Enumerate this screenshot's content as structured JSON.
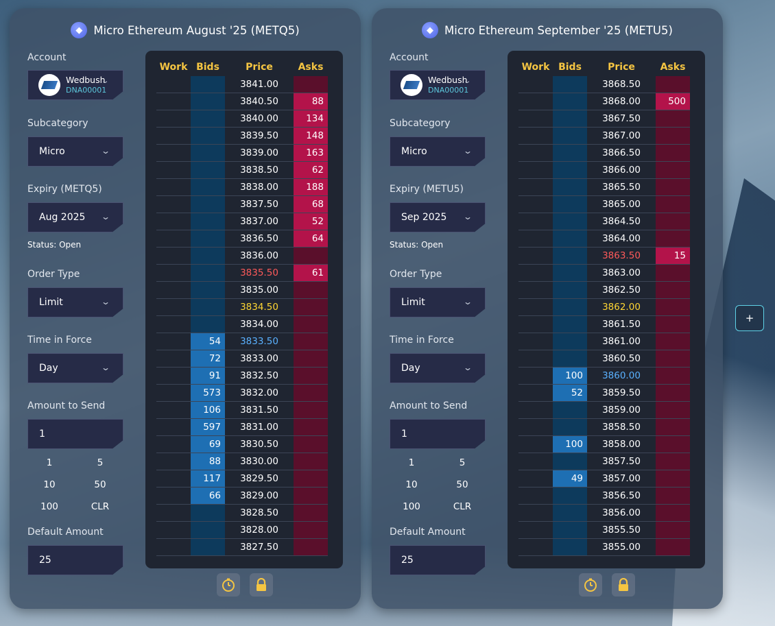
{
  "add_button": "+",
  "panels": [
    {
      "title": "Micro Ethereum August '25 (METQ5)",
      "account_label": "Account",
      "account_name": "Wedbush",
      "account_id": "DNA00001",
      "subcategory_label": "Subcategory",
      "subcategory": "Micro",
      "expiry_label": "Expiry (METQ5)",
      "expiry": "Aug 2025",
      "status": "Status: Open",
      "order_type_label": "Order Type",
      "order_type": "Limit",
      "tif_label": "Time in Force",
      "tif": "Day",
      "amount_label": "Amount to Send",
      "amount": "1",
      "quick": [
        "1",
        "5",
        "10",
        "50",
        "100",
        "CLR"
      ],
      "default_label": "Default Amount",
      "default_amount": "25",
      "headers": [
        "Work",
        "Bids",
        "Price",
        "Asks"
      ],
      "rows": [
        {
          "price": "3841.00",
          "bid": "",
          "ask": ""
        },
        {
          "price": "3840.50",
          "bid": "",
          "ask": "88"
        },
        {
          "price": "3840.00",
          "bid": "",
          "ask": "134"
        },
        {
          "price": "3839.50",
          "bid": "",
          "ask": "148"
        },
        {
          "price": "3839.00",
          "bid": "",
          "ask": "163"
        },
        {
          "price": "3838.50",
          "bid": "",
          "ask": "62"
        },
        {
          "price": "3838.00",
          "bid": "",
          "ask": "188"
        },
        {
          "price": "3837.50",
          "bid": "",
          "ask": "68"
        },
        {
          "price": "3837.00",
          "bid": "",
          "ask": "52"
        },
        {
          "price": "3836.50",
          "bid": "",
          "ask": "64"
        },
        {
          "price": "3836.00",
          "bid": "",
          "ask": ""
        },
        {
          "price": "3835.50",
          "bid": "",
          "ask": "61",
          "mark": "last"
        },
        {
          "price": "3835.00",
          "bid": "",
          "ask": ""
        },
        {
          "price": "3834.50",
          "bid": "",
          "ask": "",
          "mark": "mid"
        },
        {
          "price": "3834.00",
          "bid": "",
          "ask": ""
        },
        {
          "price": "3833.50",
          "bid": "54",
          "ask": "",
          "mark": "bid"
        },
        {
          "price": "3833.00",
          "bid": "72",
          "ask": ""
        },
        {
          "price": "3832.50",
          "bid": "91",
          "ask": ""
        },
        {
          "price": "3832.00",
          "bid": "573",
          "ask": ""
        },
        {
          "price": "3831.50",
          "bid": "106",
          "ask": ""
        },
        {
          "price": "3831.00",
          "bid": "597",
          "ask": ""
        },
        {
          "price": "3830.50",
          "bid": "69",
          "ask": ""
        },
        {
          "price": "3830.00",
          "bid": "88",
          "ask": ""
        },
        {
          "price": "3829.50",
          "bid": "117",
          "ask": ""
        },
        {
          "price": "3829.00",
          "bid": "66",
          "ask": ""
        },
        {
          "price": "3828.50",
          "bid": "",
          "ask": ""
        },
        {
          "price": "3828.00",
          "bid": "",
          "ask": ""
        },
        {
          "price": "3827.50",
          "bid": "",
          "ask": ""
        }
      ]
    },
    {
      "title": "Micro Ethereum September '25 (METU5)",
      "account_label": "Account",
      "account_name": "Wedbush",
      "account_id": "DNA00001",
      "subcategory_label": "Subcategory",
      "subcategory": "Micro",
      "expiry_label": "Expiry (METU5)",
      "expiry": "Sep 2025",
      "status": "Status: Open",
      "order_type_label": "Order Type",
      "order_type": "Limit",
      "tif_label": "Time in Force",
      "tif": "Day",
      "amount_label": "Amount to Send",
      "amount": "1",
      "quick": [
        "1",
        "5",
        "10",
        "50",
        "100",
        "CLR"
      ],
      "default_label": "Default Amount",
      "default_amount": "25",
      "headers": [
        "Work",
        "Bids",
        "Price",
        "Asks"
      ],
      "rows": [
        {
          "price": "3868.50",
          "bid": "",
          "ask": ""
        },
        {
          "price": "3868.00",
          "bid": "",
          "ask": "500"
        },
        {
          "price": "3867.50",
          "bid": "",
          "ask": ""
        },
        {
          "price": "3867.00",
          "bid": "",
          "ask": ""
        },
        {
          "price": "3866.50",
          "bid": "",
          "ask": ""
        },
        {
          "price": "3866.00",
          "bid": "",
          "ask": ""
        },
        {
          "price": "3865.50",
          "bid": "",
          "ask": ""
        },
        {
          "price": "3865.00",
          "bid": "",
          "ask": ""
        },
        {
          "price": "3864.50",
          "bid": "",
          "ask": ""
        },
        {
          "price": "3864.00",
          "bid": "",
          "ask": ""
        },
        {
          "price": "3863.50",
          "bid": "",
          "ask": "15",
          "mark": "last"
        },
        {
          "price": "3863.00",
          "bid": "",
          "ask": ""
        },
        {
          "price": "3862.50",
          "bid": "",
          "ask": ""
        },
        {
          "price": "3862.00",
          "bid": "",
          "ask": "",
          "mark": "mid"
        },
        {
          "price": "3861.50",
          "bid": "",
          "ask": ""
        },
        {
          "price": "3861.00",
          "bid": "",
          "ask": ""
        },
        {
          "price": "3860.50",
          "bid": "",
          "ask": ""
        },
        {
          "price": "3860.00",
          "bid": "100",
          "ask": "",
          "mark": "bid"
        },
        {
          "price": "3859.50",
          "bid": "52",
          "ask": ""
        },
        {
          "price": "3859.00",
          "bid": "",
          "ask": ""
        },
        {
          "price": "3858.50",
          "bid": "",
          "ask": ""
        },
        {
          "price": "3858.00",
          "bid": "100",
          "ask": ""
        },
        {
          "price": "3857.50",
          "bid": "",
          "ask": ""
        },
        {
          "price": "3857.00",
          "bid": "49",
          "ask": ""
        },
        {
          "price": "3856.50",
          "bid": "",
          "ask": ""
        },
        {
          "price": "3856.00",
          "bid": "",
          "ask": ""
        },
        {
          "price": "3855.50",
          "bid": "",
          "ask": ""
        },
        {
          "price": "3855.00",
          "bid": "",
          "ask": ""
        }
      ]
    }
  ]
}
